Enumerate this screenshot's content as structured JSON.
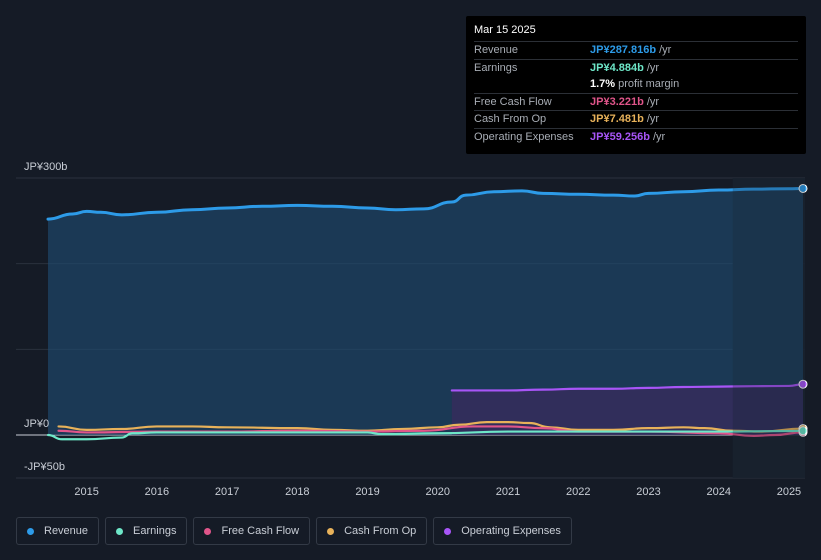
{
  "tooltip": {
    "date": "Mar 15 2025",
    "rows": [
      {
        "label": "Revenue",
        "value": "JP¥287.816b",
        "unit": "/yr",
        "color": "#2d9be8"
      },
      {
        "label": "Earnings",
        "value": "JP¥4.884b",
        "unit": "/yr",
        "color": "#6ee7c8"
      },
      {
        "label": "",
        "value": "1.7%",
        "unit": "profit margin",
        "color": "#ffffff"
      },
      {
        "label": "Free Cash Flow",
        "value": "JP¥3.221b",
        "unit": "/yr",
        "color": "#e0558a"
      },
      {
        "label": "Cash From Op",
        "value": "JP¥7.481b",
        "unit": "/yr",
        "color": "#e8b25a"
      },
      {
        "label": "Operating Expenses",
        "value": "JP¥59.256b",
        "unit": "/yr",
        "color": "#a855f7"
      }
    ]
  },
  "legend": [
    {
      "label": "Revenue",
      "color": "#2d9be8"
    },
    {
      "label": "Earnings",
      "color": "#6ee7c8"
    },
    {
      "label": "Free Cash Flow",
      "color": "#e0558a"
    },
    {
      "label": "Cash From Op",
      "color": "#e8b25a"
    },
    {
      "label": "Operating Expenses",
      "color": "#a855f7"
    }
  ],
  "chart_data": {
    "type": "line",
    "ylim": [
      -50,
      300
    ],
    "y_tick_labels": [
      {
        "value": 300,
        "label": "JP¥300b"
      },
      {
        "value": 0,
        "label": "JP¥0"
      },
      {
        "value": -50,
        "label": "-JP¥50b"
      }
    ],
    "x_tick_labels": [
      "2015",
      "2016",
      "2017",
      "2018",
      "2019",
      "2020",
      "2021",
      "2022",
      "2023",
      "2024",
      "2025"
    ],
    "xlim": [
      2014.4,
      2025.25
    ],
    "forecast_start": 2024.2,
    "series": [
      {
        "name": "Revenue",
        "color": "#2d9be8",
        "fill": true,
        "x": [
          2014.45,
          2014.8,
          2015.0,
          2015.2,
          2015.5,
          2016.0,
          2016.5,
          2017.0,
          2017.5,
          2018.0,
          2018.5,
          2019.0,
          2019.4,
          2019.8,
          2020.2,
          2020.4,
          2020.8,
          2021.2,
          2021.5,
          2022.0,
          2022.5,
          2022.8,
          2023.0,
          2023.5,
          2024.0,
          2024.5,
          2025.0,
          2025.2
        ],
        "y": [
          252,
          258,
          261,
          260,
          257,
          260,
          263,
          265,
          267,
          268,
          267,
          265,
          263,
          264,
          272,
          280,
          284,
          285,
          282,
          281,
          280,
          279,
          282,
          284,
          286,
          287,
          287.5,
          287.8
        ]
      },
      {
        "name": "Earnings",
        "color": "#6ee7c8",
        "fill": false,
        "x": [
          2014.45,
          2014.65,
          2015.0,
          2015.5,
          2015.65,
          2016.0,
          2017.0,
          2018.0,
          2019.0,
          2019.2,
          2020.0,
          2021.0,
          2022.0,
          2023.0,
          2024.0,
          2025.0,
          2025.2
        ],
        "y": [
          0,
          -5,
          -5,
          -3,
          2,
          3,
          3,
          3,
          3,
          1,
          2,
          4,
          4,
          4,
          4,
          4.6,
          4.9
        ]
      },
      {
        "name": "Free Cash Flow",
        "color": "#e0558a",
        "fill": false,
        "x": [
          2014.6,
          2015.0,
          2016.0,
          2017.0,
          2018.0,
          2019.0,
          2019.8,
          2020.5,
          2021.0,
          2021.5,
          2022.0,
          2023.0,
          2024.0,
          2024.5,
          2024.8,
          2025.2
        ],
        "y": [
          5,
          3,
          4,
          4,
          5,
          4,
          5,
          10,
          10,
          8,
          4,
          4,
          2,
          -1,
          0,
          3.2
        ]
      },
      {
        "name": "Cash From Op",
        "color": "#e8b25a",
        "fill": false,
        "x": [
          2014.6,
          2015.0,
          2015.5,
          2016.0,
          2016.5,
          2017.0,
          2018.0,
          2018.5,
          2019.0,
          2019.5,
          2020.0,
          2020.3,
          2020.7,
          2021.0,
          2021.3,
          2021.6,
          2022.0,
          2022.5,
          2023.0,
          2023.5,
          2023.8,
          2024.2,
          2024.6,
          2025.2
        ],
        "y": [
          10,
          6,
          7,
          10,
          10,
          9,
          8,
          6,
          5,
          7,
          9,
          12,
          15,
          15,
          14,
          9,
          6,
          6,
          8,
          9,
          8,
          5,
          4,
          7.5
        ]
      },
      {
        "name": "Operating Expenses",
        "color": "#a855f7",
        "fill": true,
        "x": [
          2020.2,
          2020.5,
          2021.0,
          2021.5,
          2022.0,
          2022.5,
          2023.0,
          2023.5,
          2024.0,
          2024.5,
          2025.0,
          2025.2
        ],
        "y": [
          52,
          52,
          52,
          53,
          54,
          54,
          55,
          56,
          56.5,
          57,
          57.3,
          59.3
        ]
      }
    ]
  }
}
